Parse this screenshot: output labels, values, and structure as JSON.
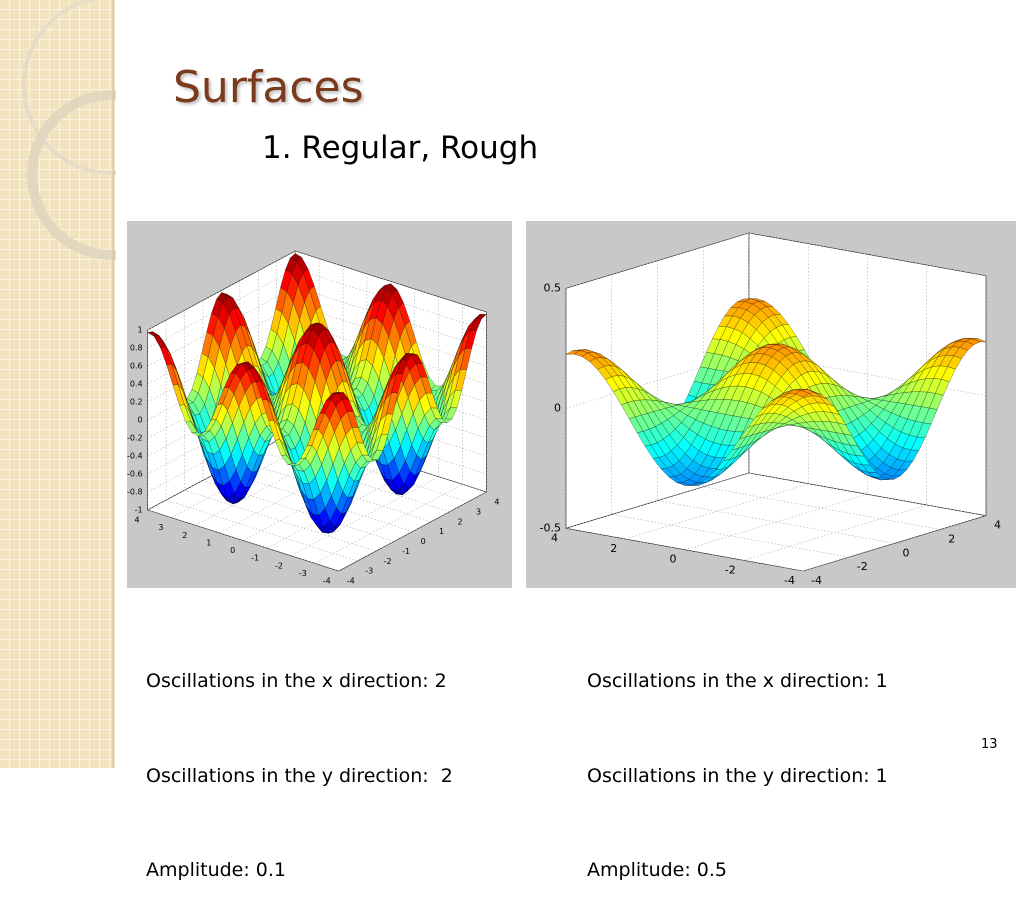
{
  "title": "Surfaces",
  "subtitle": "1. Regular, Rough",
  "figures": [
    {
      "zlim": [
        -1,
        1
      ],
      "zticks": [
        1,
        0.8,
        0.6,
        0.4,
        0.2,
        0,
        -0.2,
        -0.4,
        -0.6,
        -0.8,
        -1
      ],
      "left_ticks": [
        4,
        3,
        2,
        1,
        0,
        -1,
        -2,
        -3,
        -4
      ],
      "right_ticks": [
        -4,
        -3,
        -2,
        -1,
        0,
        1,
        2,
        3,
        4
      ]
    },
    {
      "zlim": [
        -0.5,
        0.5
      ],
      "zticks": [
        0.5,
        0,
        -0.5
      ],
      "left_ticks": [
        4,
        2,
        0,
        -2,
        -4
      ],
      "right_ticks": [
        -4,
        -2,
        0,
        2,
        4
      ]
    }
  ],
  "captions": [
    [
      "Oscillations in the x direction: 2",
      "Oscillations in the y direction:  2",
      "Amplitude: 0.1"
    ],
    [
      "Oscillations in the x direction: 1",
      "Oscillations in the y direction: 1",
      "Amplitude: 0.5"
    ]
  ],
  "page_number": "13"
}
